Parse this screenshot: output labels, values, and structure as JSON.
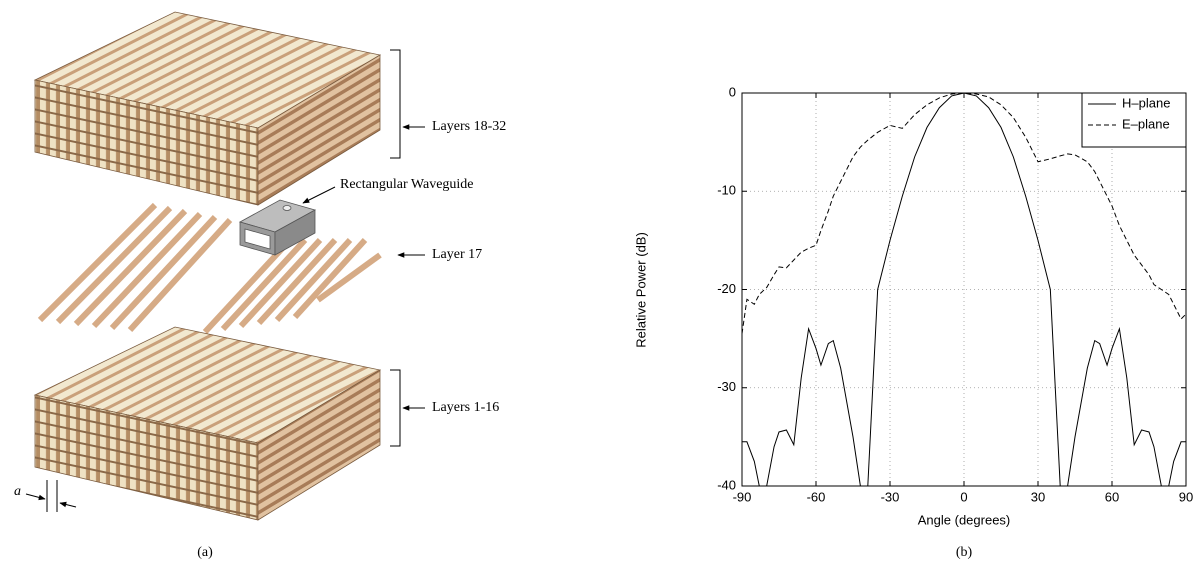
{
  "diagram": {
    "layers_top": "Layers 18-32",
    "waveguide": "Rectangular Waveguide",
    "layer_middle": "Layer 17",
    "layers_bottom": "Layers 1-16",
    "spacing": "a",
    "caption": "(a)"
  },
  "chart_caption": "(b)",
  "chart_data": {
    "type": "line",
    "xlabel": "Angle (degrees)",
    "ylabel": "Relative Power (dB)",
    "x": [
      -90,
      -88,
      -85,
      -83,
      -80,
      -77,
      -75,
      -72,
      -69,
      -66,
      -63,
      -60,
      -58,
      -55,
      -53,
      -50,
      -45,
      -42,
      -39,
      -35,
      -30,
      -25,
      -20,
      -15,
      -10,
      -5,
      0,
      5,
      10,
      15,
      20,
      25,
      30,
      35,
      39,
      42,
      45,
      50,
      53,
      55,
      58,
      60,
      63,
      66,
      69,
      72,
      75,
      77,
      80,
      83,
      85,
      88,
      90
    ],
    "series": [
      {
        "name": "H–plane",
        "color": "#000000",
        "linestyle": "solid",
        "values": [
          -35.5,
          -35.5,
          -37.5,
          -40,
          -40,
          -36,
          -34.5,
          -34.3,
          -35.8,
          -29,
          -24,
          -26,
          -27.7,
          -25.5,
          -25.2,
          -28,
          -35,
          -40,
          -40,
          -20,
          -15,
          -10.5,
          -6.5,
          -3.5,
          -1.5,
          -0.3,
          0,
          -0.3,
          -1.5,
          -3.5,
          -6.5,
          -10.5,
          -15,
          -20,
          -40,
          -40,
          -35,
          -28,
          -25.2,
          -25.5,
          -27.7,
          -26,
          -24,
          -29,
          -35.8,
          -34.3,
          -34.5,
          -36,
          -40,
          -40,
          -37.5,
          -35.5,
          -35.5
        ]
      },
      {
        "name": "E–plane",
        "color": "#000000",
        "linestyle": "dashed",
        "values": [
          -24.5,
          -21,
          -21.5,
          -20.5,
          -19.8,
          -18.5,
          -17.7,
          -17.8,
          -17,
          -16.2,
          -15.8,
          -15.5,
          -14,
          -12,
          -10.5,
          -9,
          -6.5,
          -5.5,
          -4.8,
          -4,
          -3.3,
          -3.6,
          -2.2,
          -1.2,
          -0.5,
          -0.1,
          0,
          -0.1,
          -0.4,
          -1.2,
          -2.5,
          -4.5,
          -7,
          -6.7,
          -6.4,
          -6.2,
          -6.3,
          -7,
          -8,
          -9,
          -10.5,
          -11.5,
          -13.5,
          -15,
          -16.5,
          -17.5,
          -18.5,
          -19.5,
          -20,
          -20.5,
          -21.5,
          -23,
          -22.5
        ]
      }
    ],
    "xlim": [
      -90,
      90
    ],
    "ylim": [
      -40,
      0
    ],
    "xticks": [
      -90,
      -60,
      -30,
      0,
      30,
      60,
      90
    ],
    "yticks": [
      -40,
      -30,
      -20,
      -10,
      0
    ],
    "grid": true,
    "legend": "upper right"
  }
}
